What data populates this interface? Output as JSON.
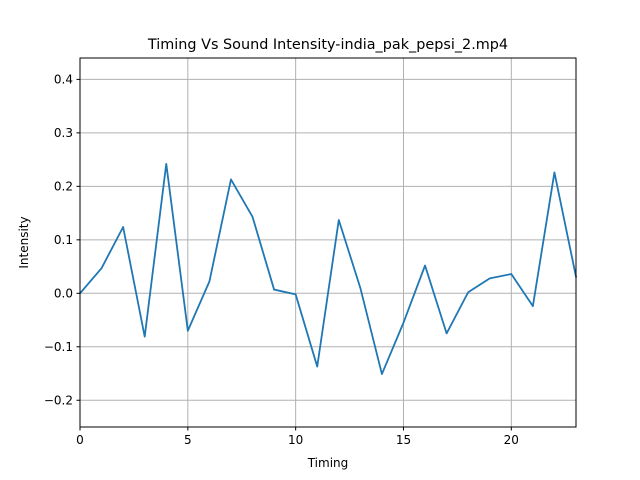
{
  "chart_data": {
    "type": "line",
    "title": "Timing Vs Sound Intensity-india_pak_pepsi_2.mp4",
    "xlabel": "Timing",
    "ylabel": "Intensity",
    "xlim": [
      0,
      23
    ],
    "ylim": [
      -0.25,
      0.44
    ],
    "xticks": [
      0,
      5,
      10,
      15,
      20
    ],
    "xtick_labels": [
      "0",
      "5",
      "10",
      "15",
      "20"
    ],
    "yticks": [
      -0.2,
      -0.1,
      0.0,
      0.1,
      0.2,
      0.3,
      0.4
    ],
    "ytick_labels": [
      "−0.2",
      "−0.1",
      "0.0",
      "0.1",
      "0.2",
      "0.3",
      "0.4"
    ],
    "grid": true,
    "color": "#1f77b4",
    "series": [
      {
        "x": [
          0,
          1,
          2,
          3,
          4,
          5,
          6,
          7,
          8,
          9,
          10,
          11,
          12,
          13,
          14,
          15,
          16,
          17,
          18,
          19,
          20,
          21,
          22,
          23
        ],
        "values": [
          0.0,
          0.047,
          0.124,
          -0.081,
          0.242,
          -0.07,
          0.022,
          0.213,
          0.143,
          0.007,
          -0.002,
          -0.137,
          0.137,
          0.01,
          -0.151,
          -0.055,
          0.052,
          -0.075,
          0.002,
          0.028,
          0.036,
          -0.024,
          0.226,
          0.031
        ]
      }
    ]
  }
}
